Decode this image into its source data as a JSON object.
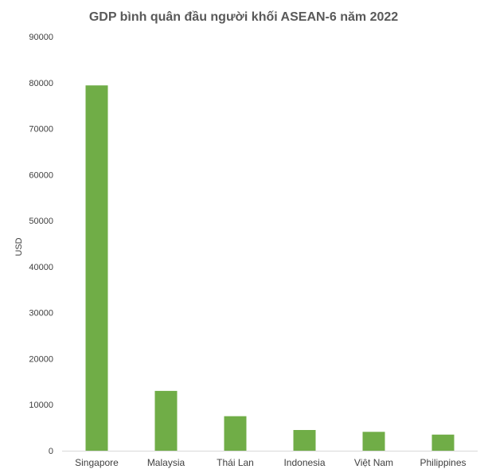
{
  "chart_data": {
    "type": "bar",
    "title": "GDP bình quân đầu người khối ASEAN-6 năm 2022",
    "xlabel": "",
    "ylabel": "USD",
    "categories": [
      "Singapore",
      "Malaysia",
      "Thái Lan",
      "Indonesia",
      "Việt Nam",
      "Philippines"
    ],
    "values": [
      79400,
      13000,
      7500,
      4500,
      4100,
      3500
    ],
    "ylim": [
      0,
      90000
    ],
    "yticks": [
      "0",
      "10000",
      "20000",
      "30000",
      "40000",
      "50000",
      "60000",
      "70000",
      "80000",
      "90000"
    ],
    "bar_color": "#70ad47",
    "grid": false,
    "legend": "none"
  }
}
